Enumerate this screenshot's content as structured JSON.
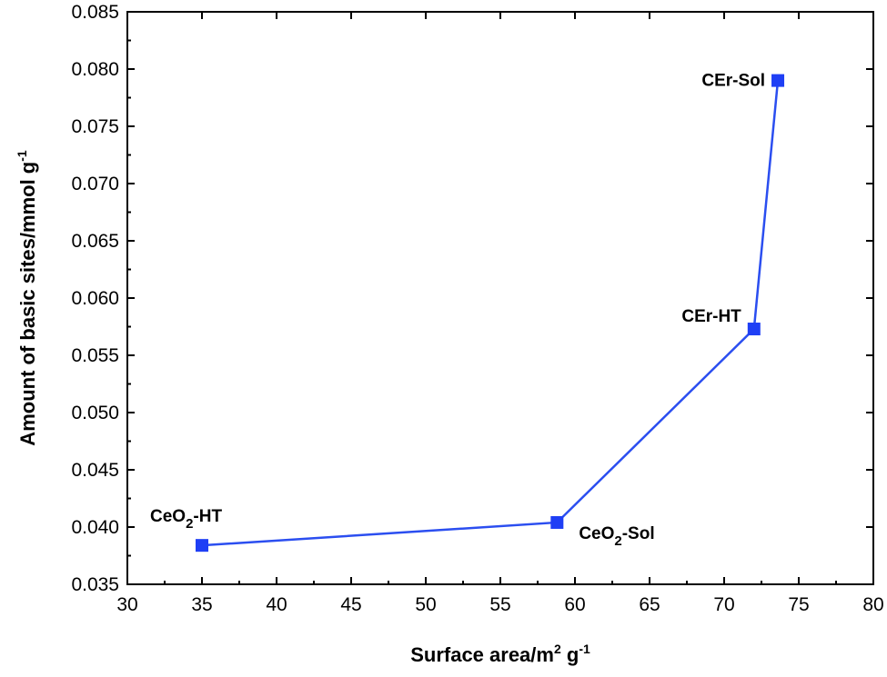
{
  "chart_data": {
    "type": "line",
    "xlabel": {
      "text": "Surface area/m",
      "sup1": "2",
      "mid": " g",
      "sup2": "-1"
    },
    "ylabel": {
      "text": "Amount of basic sites/mmol g",
      "sup": "-1"
    },
    "xlim": [
      30,
      80
    ],
    "ylim": [
      0.035,
      0.085
    ],
    "xticks": [
      "30",
      "35",
      "40",
      "45",
      "50",
      "55",
      "60",
      "65",
      "70",
      "75",
      "80"
    ],
    "yticks": [
      "0.035",
      "0.040",
      "0.045",
      "0.050",
      "0.055",
      "0.060",
      "0.065",
      "0.070",
      "0.075",
      "0.080",
      "0.085"
    ],
    "line_color": "#2b4ef0",
    "marker_color": "#1f3ff5",
    "points": [
      {
        "x": 35.0,
        "y": 0.0384,
        "label": {
          "base": "CeO",
          "sub": "2",
          "suffix": "-HT"
        },
        "label_pos": "above-left"
      },
      {
        "x": 58.8,
        "y": 0.0404,
        "label": {
          "base": "CeO",
          "sub": "2",
          "suffix": "-Sol"
        },
        "label_pos": "below-right"
      },
      {
        "x": 72.0,
        "y": 0.0573,
        "label": {
          "base": "CEr-HT",
          "sub": "",
          "suffix": ""
        },
        "label_pos": "left"
      },
      {
        "x": 73.6,
        "y": 0.079,
        "label": {
          "base": "CEr-Sol",
          "sub": "",
          "suffix": ""
        },
        "label_pos": "left"
      }
    ]
  }
}
